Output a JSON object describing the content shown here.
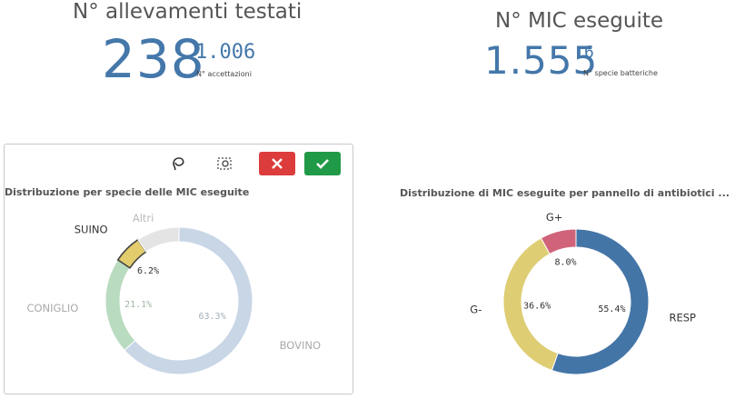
{
  "kpi_left": {
    "title": "N° allevamenti testati",
    "value": "238",
    "secondary_value": "1.006",
    "secondary_label": "N° accettazioni"
  },
  "kpi_right": {
    "title": "N° MIC eseguite",
    "value": "1.555",
    "secondary_value": "6",
    "secondary_label": "N° specie batteriche"
  },
  "toolbar": {
    "lasso_icon": "lasso-icon",
    "clear_icon": "clear-selection-icon",
    "cancel_icon": "close-icon",
    "confirm_icon": "check-icon"
  },
  "chart_data": [
    {
      "type": "pie",
      "donut": true,
      "title": "Distribuzione per specie delle MIC eseguite",
      "categories": [
        "BOVINO",
        "CONIGLIO",
        "SUINO",
        "Altri"
      ],
      "values": [
        63.3,
        21.1,
        6.2,
        9.4
      ],
      "value_labels": [
        "63.3%",
        "21.1%",
        "6.2%",
        ""
      ],
      "colors": [
        "#c8d6e6",
        "#b9dbbf",
        "#e2cc6c",
        "#e4e4e4"
      ],
      "selected": "SUINO"
    },
    {
      "type": "pie",
      "donut": true,
      "title": "Distribuzione di MIC eseguite per pannello di antibiotici ...",
      "categories": [
        "RESP",
        "G-",
        "G+"
      ],
      "values": [
        55.4,
        36.6,
        8.0
      ],
      "value_labels": [
        "55.4%",
        "36.6%",
        "8.0%"
      ],
      "colors": [
        "#4475a7",
        "#decd72",
        "#d0637a"
      ]
    }
  ]
}
